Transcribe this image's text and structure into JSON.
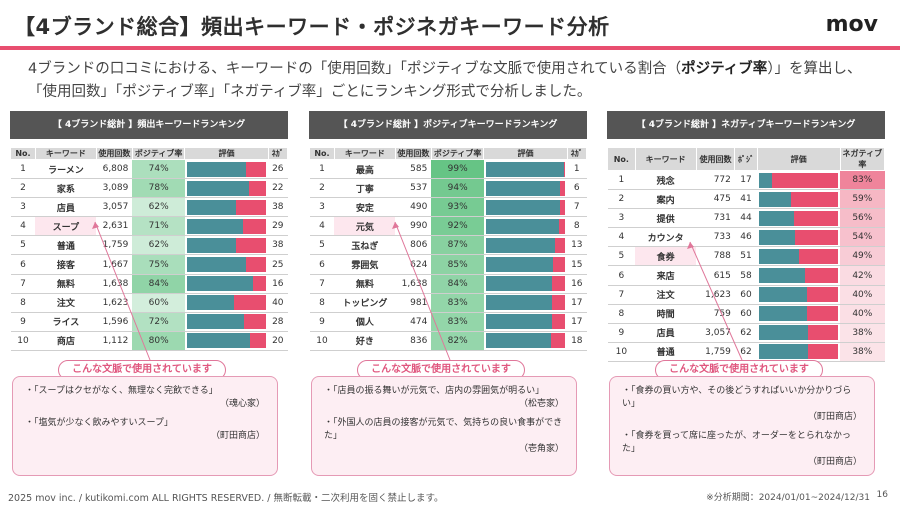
{
  "header": {
    "title": "【4ブランド総合】頻出キーワード・ポジネガキーワード分析",
    "logo": "mov"
  },
  "description": {
    "part1": "4ブランドの口コミにおける、キーワードの「使用回数」「ポジティブな文脈で使用されている割合（",
    "bold1": "ポジティブ率",
    "part2": "）」を算出し、「使用回数」「ポジティブ率」「ネガティブ率」ごとにランキング形式で分析しました。"
  },
  "panels": [
    {
      "title": "【 4ブランド総計 】頻出キーワードランキング",
      "headers": [
        "No.",
        "キーワード",
        "使用回数",
        "ポジティブ率",
        "評価",
        "ﾈｶﾞ"
      ],
      "rows": [
        {
          "no": "1",
          "kw": "ラーメン",
          "count": "6,808",
          "rate": "74%",
          "other": "26",
          "pos": 0.74
        },
        {
          "no": "2",
          "kw": "家系",
          "count": "3,089",
          "rate": "78%",
          "other": "22",
          "pos": 0.78
        },
        {
          "no": "3",
          "kw": "店員",
          "count": "3,057",
          "rate": "62%",
          "other": "38",
          "pos": 0.62
        },
        {
          "no": "4",
          "kw": "スープ",
          "count": "2,631",
          "rate": "71%",
          "other": "29",
          "pos": 0.71
        },
        {
          "no": "5",
          "kw": "普通",
          "count": "1,759",
          "rate": "62%",
          "other": "38",
          "pos": 0.62
        },
        {
          "no": "6",
          "kw": "接客",
          "count": "1,667",
          "rate": "75%",
          "other": "25",
          "pos": 0.75
        },
        {
          "no": "7",
          "kw": "無料",
          "count": "1,638",
          "rate": "84%",
          "other": "16",
          "pos": 0.84
        },
        {
          "no": "8",
          "kw": "注文",
          "count": "1,623",
          "rate": "60%",
          "other": "40",
          "pos": 0.6
        },
        {
          "no": "9",
          "kw": "ライス",
          "count": "1,596",
          "rate": "72%",
          "other": "28",
          "pos": 0.72
        },
        {
          "no": "10",
          "kw": "商店",
          "count": "1,112",
          "rate": "80%",
          "other": "20",
          "pos": 0.8
        }
      ],
      "highlight": 3,
      "callout_label": "こんな文脈で使用されています",
      "quotes": [
        {
          "text": "・「スープはクセがなく、無理なく完飲できる」",
          "src": "（魂心家）"
        },
        {
          "text": "・「塩気が少なく飲みやすいスープ」",
          "src": "（町田商店）"
        }
      ]
    },
    {
      "title": "【 4ブランド総計 】ポジティブキーワードランキング",
      "headers": [
        "No.",
        "キーワード",
        "使用回数",
        "ポジティブ率",
        "評価",
        "ﾈｶﾞ"
      ],
      "rows": [
        {
          "no": "1",
          "kw": "最高",
          "count": "585",
          "rate": "99%",
          "other": "1",
          "pos": 0.99
        },
        {
          "no": "2",
          "kw": "丁寧",
          "count": "537",
          "rate": "94%",
          "other": "6",
          "pos": 0.94
        },
        {
          "no": "3",
          "kw": "安定",
          "count": "490",
          "rate": "93%",
          "other": "7",
          "pos": 0.93
        },
        {
          "no": "4",
          "kw": "元気",
          "count": "990",
          "rate": "92%",
          "other": "8",
          "pos": 0.92
        },
        {
          "no": "5",
          "kw": "玉ねぎ",
          "count": "806",
          "rate": "87%",
          "other": "13",
          "pos": 0.87
        },
        {
          "no": "6",
          "kw": "雰囲気",
          "count": "624",
          "rate": "85%",
          "other": "15",
          "pos": 0.85
        },
        {
          "no": "7",
          "kw": "無料",
          "count": "1,638",
          "rate": "84%",
          "other": "16",
          "pos": 0.84
        },
        {
          "no": "8",
          "kw": "トッピング",
          "count": "981",
          "rate": "83%",
          "other": "17",
          "pos": 0.83
        },
        {
          "no": "9",
          "kw": "個人",
          "count": "474",
          "rate": "83%",
          "other": "17",
          "pos": 0.83
        },
        {
          "no": "10",
          "kw": "好き",
          "count": "836",
          "rate": "82%",
          "other": "18",
          "pos": 0.82
        }
      ],
      "highlight": 3,
      "callout_label": "こんな文脈で使用されています",
      "quotes": [
        {
          "text": "・「店員の振る舞いが元気で、店内の雰囲気が明るい」",
          "src": "（松壱家）"
        },
        {
          "text": "・「外国人の店員の接客が元気で、気持ちの良い食事ができた」",
          "src": "（壱角家）"
        }
      ]
    },
    {
      "title": "【 4ブランド総計 】ネガティブキーワードランキング",
      "headers": [
        "No.",
        "キーワード",
        "使用回数",
        "ﾎﾟｼﾞ",
        "評価",
        "ネガティブ率"
      ],
      "rows": [
        {
          "no": "1",
          "kw": "残念",
          "count": "772",
          "rate": "17",
          "other": "83%",
          "pos": 0.17
        },
        {
          "no": "2",
          "kw": "案内",
          "count": "475",
          "rate": "41",
          "other": "59%",
          "pos": 0.41
        },
        {
          "no": "3",
          "kw": "提供",
          "count": "731",
          "rate": "44",
          "other": "56%",
          "pos": 0.44
        },
        {
          "no": "4",
          "kw": "カウンタ",
          "count": "733",
          "rate": "46",
          "other": "54%",
          "pos": 0.46
        },
        {
          "no": "5",
          "kw": "食券",
          "count": "788",
          "rate": "51",
          "other": "49%",
          "pos": 0.51
        },
        {
          "no": "6",
          "kw": "来店",
          "count": "615",
          "rate": "58",
          "other": "42%",
          "pos": 0.58
        },
        {
          "no": "7",
          "kw": "注文",
          "count": "1,623",
          "rate": "60",
          "other": "40%",
          "pos": 0.6
        },
        {
          "no": "8",
          "kw": "時間",
          "count": "759",
          "rate": "60",
          "other": "40%",
          "pos": 0.6
        },
        {
          "no": "9",
          "kw": "店員",
          "count": "3,057",
          "rate": "62",
          "other": "38%",
          "pos": 0.62
        },
        {
          "no": "10",
          "kw": "普通",
          "count": "1,759",
          "rate": "62",
          "other": "38%",
          "pos": 0.62
        }
      ],
      "highlight": 4,
      "callout_label": "こんな文脈で使用されています",
      "quotes": [
        {
          "text": "・「食券の買い方や、その後どうすればいいか分かりづらい」",
          "src": "（町田商店）"
        },
        {
          "text": "・「食券を買って席に座ったが、オーダーをとられなかった」",
          "src": "（町田商店）"
        }
      ]
    }
  ],
  "colors": {
    "accent": "#e84e6f",
    "positive": "#4a8f99",
    "negative": "#e84e6f"
  },
  "footer": {
    "copyright": "2025 mov inc. / kutikomi.com ALL RIGHTS RESERVED. / 無断転載・二次利用を固く禁止します。",
    "period": "※分析期間：2024/01/01~2024/12/31",
    "page": "16"
  }
}
